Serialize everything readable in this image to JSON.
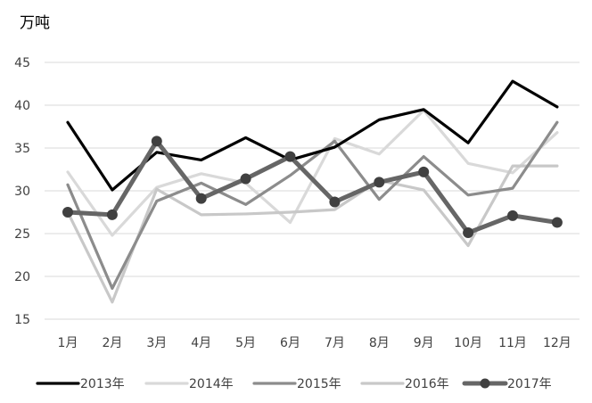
{
  "chart_data": {
    "type": "line",
    "unit_label": "万吨",
    "categories": [
      "1月",
      "2月",
      "3月",
      "4月",
      "5月",
      "6月",
      "7月",
      "8月",
      "9月",
      "10月",
      "11月",
      "12月"
    ],
    "ylim": [
      15,
      45
    ],
    "yticks": [
      15,
      20,
      25,
      30,
      35,
      40,
      45
    ],
    "grid": true,
    "legend_position": "bottom",
    "series": [
      {
        "name": "2013年",
        "color": "#000000",
        "marker": false,
        "values": [
          38,
          30.1,
          34.5,
          33.6,
          36.2,
          33.6,
          35.1,
          38.3,
          39.5,
          35.6,
          42.8,
          39.8
        ]
      },
      {
        "name": "2014年",
        "color": "#d9d9d9",
        "marker": false,
        "values": [
          32.2,
          24.8,
          30.4,
          32,
          30.9,
          26.3,
          36.1,
          34.3,
          39.4,
          33.2,
          32.1,
          36.8
        ]
      },
      {
        "name": "2015年",
        "color": "#8c8c8c",
        "marker": false,
        "values": [
          30.7,
          18.6,
          28.8,
          30.9,
          28.4,
          31.8,
          35.8,
          29,
          34,
          29.5,
          30.3,
          38
        ]
      },
      {
        "name": "2016年",
        "color": "#c8c8c8",
        "marker": false,
        "values": [
          27.5,
          17,
          30.2,
          27.2,
          27.3,
          27.5,
          27.8,
          31.2,
          30.1,
          23.6,
          32.9,
          32.9
        ]
      },
      {
        "name": "2017年",
        "color": "#666666",
        "marker": true,
        "values": [
          27.5,
          27.2,
          35.8,
          29.1,
          31.4,
          34,
          28.7,
          31,
          32.2,
          25.1,
          27.1,
          26.3
        ]
      }
    ]
  }
}
